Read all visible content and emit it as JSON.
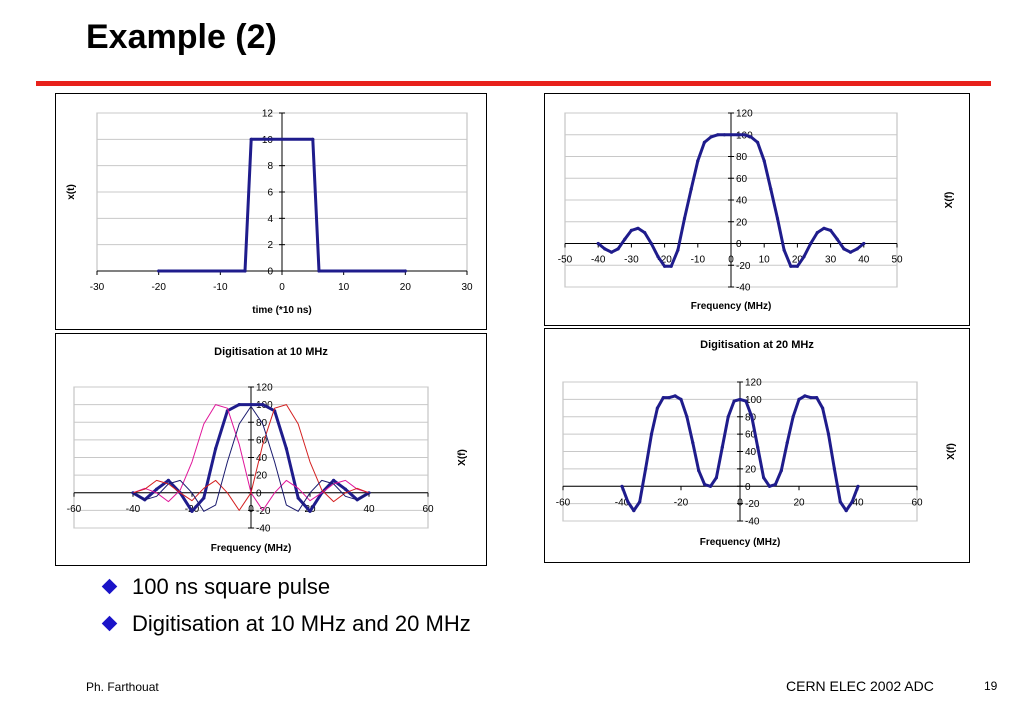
{
  "slide": {
    "title": "Example (2)",
    "bullets": [
      "100 ns square pulse",
      "Digitisation at 10 MHz and 20 MHz"
    ],
    "footer_left": "Ph. Farthouat",
    "footer_center": "CERN ELEC 2002 ADC",
    "page_number": "19",
    "accent_color": "#e8211b",
    "bullet_color": "#1a13c8",
    "bullet_icon": "diamond-bullet-icon"
  },
  "chart_data": [
    {
      "type": "line",
      "title": "",
      "xlabel": "time (*10 ns)",
      "ylabel": "x(t)",
      "xlim": [
        -30,
        30
      ],
      "ylim": [
        0,
        12
      ],
      "xticks": [
        "-30",
        "-20",
        "-10",
        "0",
        "10",
        "20",
        "30"
      ],
      "yticks": [
        "0",
        "2",
        "4",
        "6",
        "8",
        "10",
        "12"
      ],
      "grid": true,
      "series": [
        {
          "color": "#1f1c8c",
          "x": [
            -20,
            -6,
            -5,
            5,
            6,
            20
          ],
          "y": [
            0,
            0,
            10,
            10,
            0,
            0
          ]
        }
      ]
    },
    {
      "type": "line",
      "title": "",
      "xlabel": "Frequency (MHz)",
      "ylabel": "X(f)",
      "xlim": [
        -50,
        50
      ],
      "ylim": [
        -40,
        120
      ],
      "xticks": [
        "-50",
        "-40",
        "-30",
        "-20",
        "-10",
        "0",
        "10",
        "20",
        "30",
        "40",
        "50"
      ],
      "yticks": [
        "-40",
        "-20",
        "0",
        "20",
        "40",
        "60",
        "80",
        "100",
        "120"
      ],
      "grid": true,
      "series": [
        {
          "color": "#1f1c8c",
          "x": [
            -40,
            -38,
            -36,
            -34,
            -32,
            -30,
            -28,
            -26,
            -24,
            -22,
            -20,
            -18,
            -16,
            -14,
            -12,
            -10,
            -8,
            -6,
            -4,
            -2,
            0,
            2,
            4,
            6,
            8,
            10,
            12,
            14,
            16,
            18,
            20,
            22,
            24,
            26,
            28,
            30,
            32,
            34,
            36,
            38,
            40
          ],
          "y": [
            0,
            -5,
            -8,
            -5,
            4,
            12,
            14,
            10,
            0,
            -12,
            -21,
            -21,
            -6,
            23,
            50,
            76,
            93,
            98,
            100,
            100,
            100,
            100,
            100,
            98,
            93,
            76,
            50,
            23,
            -6,
            -21,
            -21,
            -12,
            0,
            10,
            14,
            12,
            4,
            -5,
            -8,
            -5,
            0
          ]
        }
      ]
    },
    {
      "type": "line",
      "title": "Digitisation at 10 MHz",
      "xlabel": "Frequency (MHz)",
      "ylabel": "X(f)",
      "xlim": [
        -60,
        60
      ],
      "ylim": [
        -40,
        120
      ],
      "xticks": [
        "-60",
        "-40",
        "-20",
        "0",
        "20",
        "40",
        "60"
      ],
      "yticks": [
        "-40",
        "-20",
        "0",
        "20",
        "40",
        "60",
        "80",
        "100",
        "120"
      ],
      "grid": true,
      "series": [
        {
          "color": "#1f1c8c",
          "x": [
            -40,
            -36,
            -32,
            -28,
            -24,
            -20,
            -16,
            -12,
            -8,
            -4,
            0,
            4,
            8,
            12,
            16,
            20,
            24,
            28,
            32,
            36,
            40
          ],
          "y": [
            0,
            -8,
            4,
            14,
            0,
            -21,
            -6,
            50,
            93,
            100,
            100,
            100,
            93,
            50,
            -6,
            -21,
            0,
            14,
            4,
            -8,
            0
          ]
        },
        {
          "color": "#e0159a",
          "x": [
            -40,
            -36,
            -32,
            -28,
            -24,
            -20,
            -16,
            -12,
            -8,
            -4,
            0,
            4,
            8,
            12,
            16,
            20,
            24,
            28,
            32,
            36,
            40
          ],
          "y": [
            0,
            5,
            0,
            -10,
            3,
            35,
            78,
            100,
            96,
            55,
            0,
            -20,
            0,
            14,
            5,
            -9,
            0,
            10,
            14,
            4,
            0
          ]
        },
        {
          "color": "#d42020",
          "x": [
            -40,
            -36,
            -32,
            -28,
            -24,
            -20,
            -16,
            -12,
            -8,
            -4,
            0,
            4,
            8,
            12,
            16,
            20,
            24,
            28,
            32,
            36,
            40
          ],
          "y": [
            0,
            4,
            14,
            10,
            0,
            -9,
            5,
            14,
            0,
            -20,
            0,
            55,
            96,
            100,
            78,
            35,
            3,
            -10,
            0,
            5,
            0
          ]
        },
        {
          "color": "#1a1a6e",
          "x": [
            -40,
            -36,
            -32,
            -28,
            -24,
            -20,
            -16,
            -12,
            -8,
            -4,
            0,
            4,
            8,
            12,
            16,
            20,
            24,
            28,
            32,
            36,
            40
          ],
          "y": [
            0,
            -8,
            -4,
            10,
            14,
            0,
            -21,
            -14,
            35,
            78,
            98,
            78,
            35,
            -14,
            -21,
            0,
            14,
            10,
            -4,
            -8,
            0
          ]
        }
      ]
    },
    {
      "type": "line",
      "title": "Digitisation at 20 MHz",
      "xlabel": "Frequency (MHz)",
      "ylabel": "X(f)",
      "xlim": [
        -60,
        60
      ],
      "ylim": [
        -40,
        120
      ],
      "xticks": [
        "-60",
        "-40",
        "-20",
        "0",
        "20",
        "40",
        "60"
      ],
      "yticks": [
        "-40",
        "-20",
        "0",
        "20",
        "40",
        "60",
        "80",
        "100",
        "120"
      ],
      "grid": true,
      "series": [
        {
          "color": "#1f1c8c",
          "x": [
            -40,
            -38,
            -36,
            -34,
            -32,
            -30,
            -28,
            -26,
            -24,
            -22,
            -20,
            -18,
            -16,
            -14,
            -12,
            -10,
            -8,
            -6,
            -4,
            -2,
            0,
            2,
            4,
            6,
            8,
            10,
            12,
            14,
            16,
            18,
            20,
            22,
            24,
            26,
            28,
            30,
            32,
            34,
            36,
            38,
            40
          ],
          "y": [
            0,
            -18,
            -28,
            -18,
            20,
            60,
            90,
            102,
            102,
            104,
            100,
            80,
            50,
            18,
            2,
            0,
            10,
            45,
            80,
            98,
            100,
            98,
            80,
            45,
            10,
            0,
            2,
            18,
            50,
            80,
            100,
            104,
            102,
            102,
            90,
            60,
            20,
            -18,
            -28,
            -18,
            0
          ]
        }
      ]
    }
  ]
}
